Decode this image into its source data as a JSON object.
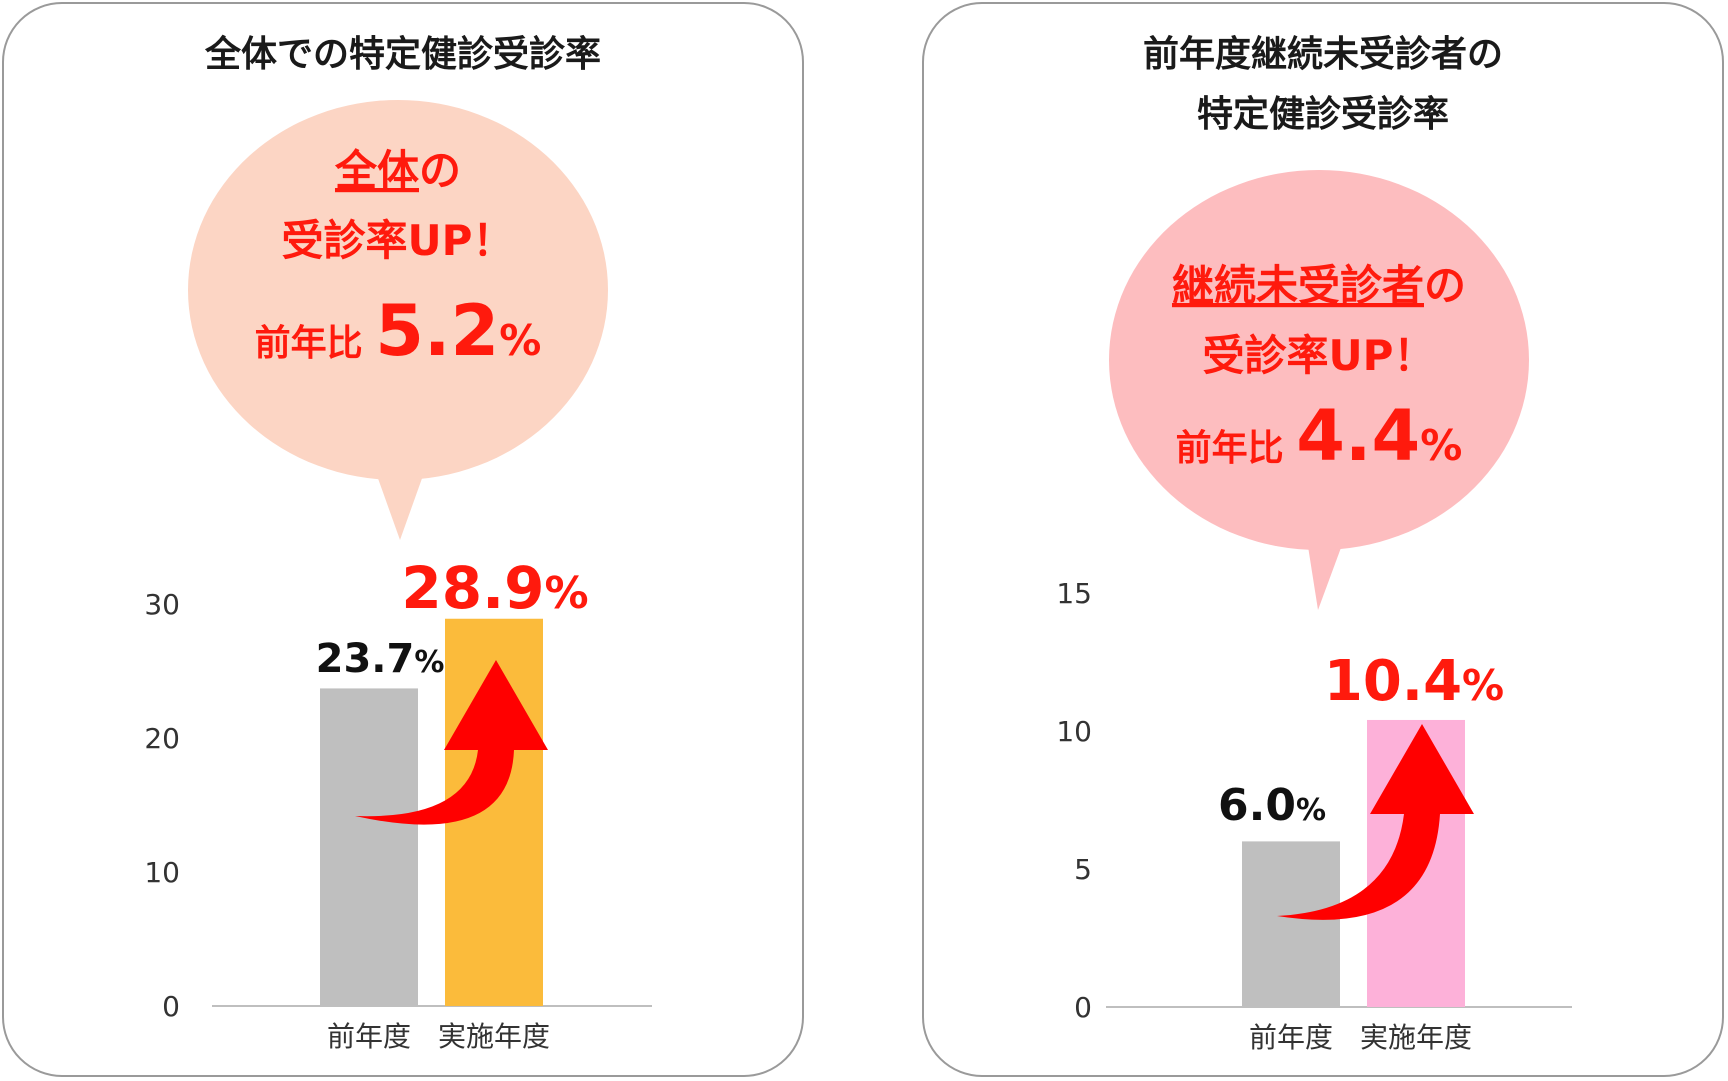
{
  "panels": [
    {
      "title_lines": [
        "全体での特定健診受診率"
      ],
      "bubble": {
        "line1_underlined": "全体",
        "line1_rest": "の",
        "line2": "受診率UP！",
        "line3_prefix": "前年比",
        "line3_value": "5.2",
        "line3_unit": "%",
        "fill": "#fcd5c4"
      },
      "arrow_icon": "curved-up-arrow"
    },
    {
      "title_lines": [
        "前年度継続未受診者の",
        "特定健診受診率"
      ],
      "bubble": {
        "line1_underlined": "継続未受診者",
        "line1_rest": "の",
        "line2": "受診率UP！",
        "line3_prefix": "前年比",
        "line3_value": "4.4",
        "line3_unit": "%",
        "fill": "#fdbdbf"
      },
      "arrow_icon": "curved-up-arrow"
    }
  ],
  "chart_data": [
    {
      "type": "bar",
      "categories": [
        "前年度",
        "実施年度"
      ],
      "values": [
        23.7,
        28.9
      ],
      "data_labels": [
        {
          "num": "23.7",
          "unit": "%"
        },
        {
          "num": "28.9",
          "unit": "%"
        }
      ],
      "yticks": [
        "0",
        "10",
        "20",
        "30"
      ],
      "ylim": [
        0,
        30
      ],
      "grid": false,
      "bar_colors": [
        "#bfbfbf",
        "#fbbb3b"
      ],
      "label_colors": [
        "#111111",
        "#ff1a0d"
      ]
    },
    {
      "type": "bar",
      "categories": [
        "前年度",
        "実施年度"
      ],
      "values": [
        6.0,
        10.4
      ],
      "data_labels": [
        {
          "num": "6.0",
          "unit": "%"
        },
        {
          "num": "10.4",
          "unit": "%"
        }
      ],
      "yticks": [
        "0",
        "5",
        "10",
        "15"
      ],
      "ylim": [
        0,
        15
      ],
      "grid": false,
      "bar_colors": [
        "#bfbfbf",
        "#fdb1d9"
      ],
      "label_colors": [
        "#111111",
        "#ff1a0d"
      ]
    }
  ],
  "colors": {
    "arrow": "#ff0000",
    "axis": "#bfbfbf",
    "highlight_text": "#ff1a0d"
  }
}
